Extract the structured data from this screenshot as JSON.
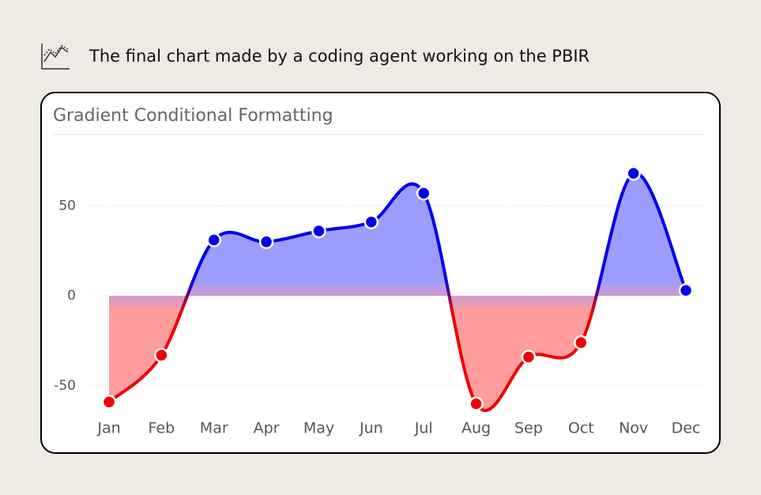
{
  "heading": "The final chart made by a coding agent working on the PBIR",
  "chart_data": {
    "type": "area",
    "title": "Gradient Conditional Formatting",
    "categories": [
      "Jan",
      "Feb",
      "Mar",
      "Apr",
      "May",
      "Jun",
      "Jul",
      "Aug",
      "Sep",
      "Oct",
      "Nov",
      "Dec"
    ],
    "values": [
      -59,
      -33,
      31,
      30,
      36,
      41,
      57,
      -60,
      -34,
      -26,
      68,
      3
    ],
    "ylim": [
      -65,
      80
    ],
    "yticks": [
      -50,
      0,
      50
    ],
    "grid": true,
    "positive_color": "#0000ee",
    "negative_color": "#ee0000",
    "positive_fill": "#9c9cff",
    "negative_fill": "#ff9c9c"
  }
}
